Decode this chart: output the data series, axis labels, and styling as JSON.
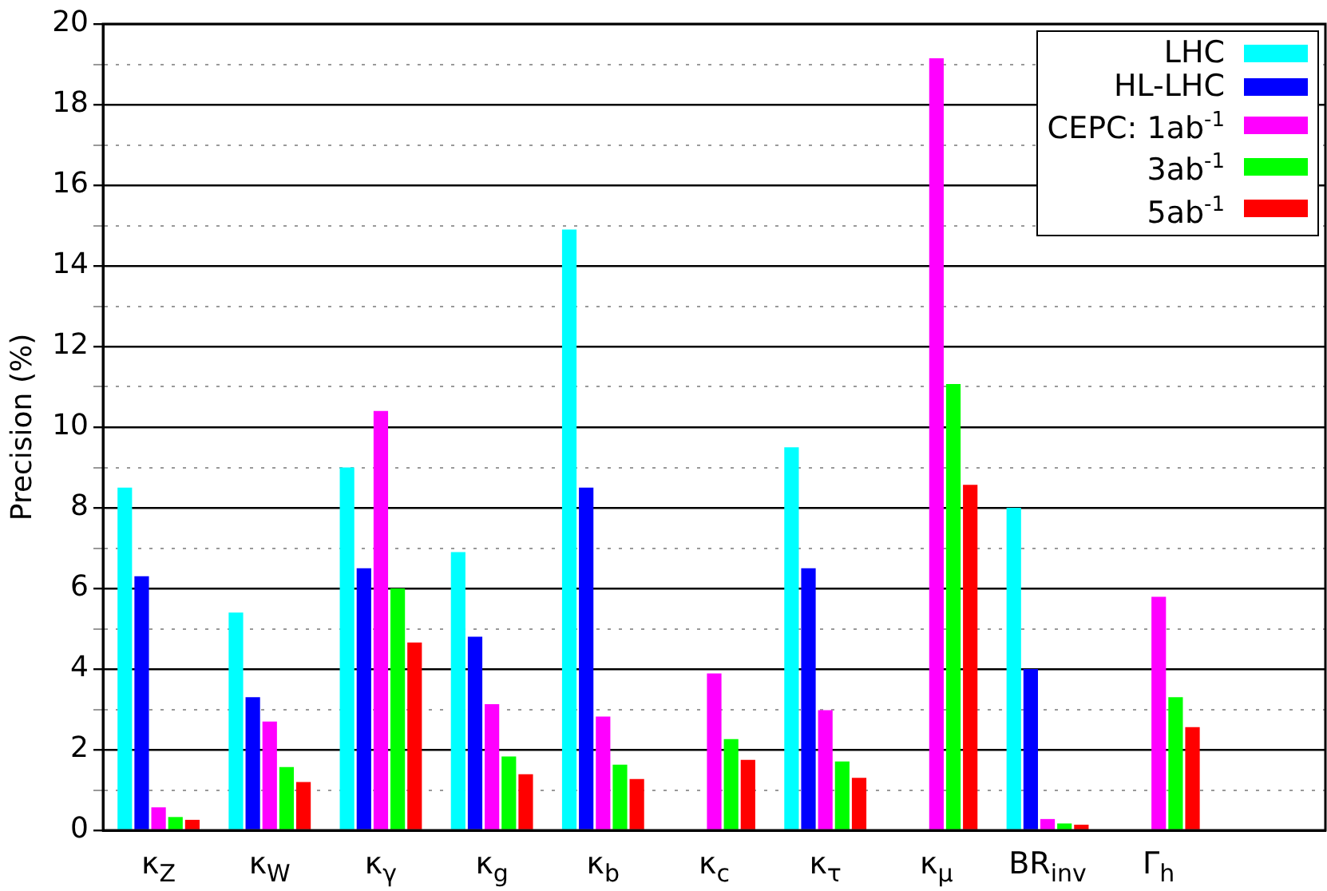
{
  "chart_data": {
    "type": "bar",
    "ylabel": "Precision (%)",
    "categories": [
      "κ$_{Z}$",
      "κ$_{W}$",
      "κ$_{γ}$",
      "κ$_{g}$",
      "κ$_{b}$",
      "κ$_{c}$",
      "κ$_{τ}$",
      "κ$_{μ}$",
      "BR$_{inv}$",
      "Γ$_{h}$",
      null
    ],
    "series": [
      {
        "name": "LHC",
        "color": "#00ffff",
        "values": [
          8.5,
          5.4,
          9.0,
          6.9,
          14.9,
          null,
          9.5,
          null,
          8.0,
          null,
          null
        ]
      },
      {
        "name": "HL-LHC",
        "color": "#0000ff",
        "values": [
          6.3,
          3.3,
          6.5,
          4.8,
          8.5,
          null,
          6.5,
          null,
          4.0,
          null,
          null
        ]
      },
      {
        "name": "CEPC: 1ab$^{-1}$",
        "color": "#ff00ff",
        "values": [
          0.57,
          2.7,
          10.4,
          3.13,
          2.82,
          3.89,
          2.98,
          19.15,
          0.28,
          5.79,
          null
        ]
      },
      {
        "name": "3ab$^{-1}$",
        "color": "#00ff00",
        "values": [
          0.33,
          1.57,
          6.0,
          1.83,
          1.63,
          2.26,
          1.71,
          11.07,
          0.17,
          3.3,
          null
        ]
      },
      {
        "name": "5ab$^{-1}$",
        "color": "#ff0000",
        "values": [
          0.26,
          1.2,
          4.66,
          1.39,
          1.27,
          1.75,
          1.3,
          8.57,
          0.14,
          2.56,
          null
        ]
      }
    ],
    "ylim": [
      0,
      20
    ],
    "yticks": [
      0,
      {
        "value": 1,
        "label": null
      },
      2,
      {
        "value": 3,
        "label": null
      },
      4,
      {
        "value": 5,
        "label": null
      },
      6,
      {
        "value": 7,
        "label": null
      },
      8,
      {
        "value": 9,
        "label": null
      },
      10,
      {
        "value": 11,
        "label": null
      },
      12,
      {
        "value": 13,
        "label": null
      },
      14,
      {
        "value": 15,
        "label": null
      },
      16,
      {
        "value": 17,
        "label": null
      },
      18,
      {
        "value": 19,
        "label": null
      },
      20
    ],
    "grid": "y",
    "legend": "top right"
  }
}
